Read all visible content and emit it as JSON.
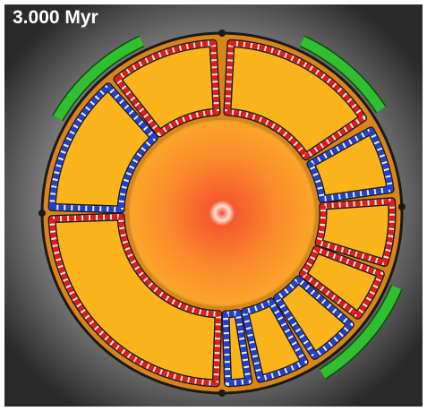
{
  "time_label": "3.000 Myr"
}
